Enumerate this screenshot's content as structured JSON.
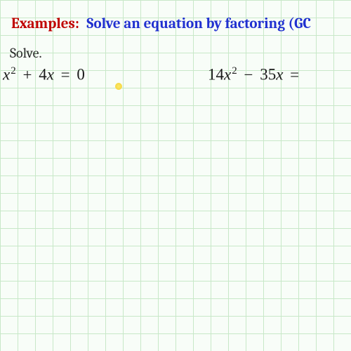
{
  "title": {
    "examples_label": "Examples:",
    "heading": "Solve an equation by factoring (GC"
  },
  "instruction": "Solve.",
  "equations": {
    "left": {
      "coef1": "",
      "var1": "x",
      "exp1": "2",
      "op": "+",
      "coef2": "4",
      "var2": "x",
      "equals": "=",
      "rhs": "0"
    },
    "right": {
      "coef1": "14",
      "var1": "x",
      "exp1": "2",
      "op": "−",
      "coef2": "35",
      "var2": "x",
      "equals": "=",
      "rhs": ""
    }
  },
  "grid": {
    "background_color": "#f8fdf8",
    "line_color": "#c8e8c8",
    "cell_size": 25
  },
  "colors": {
    "examples": "#c00000",
    "heading": "#2030d0",
    "text": "#1a1a1a",
    "cursor": "#f5d742"
  },
  "typography": {
    "title_fontsize": 21,
    "equation_fontsize": 23,
    "instruction_fontsize": 20
  }
}
